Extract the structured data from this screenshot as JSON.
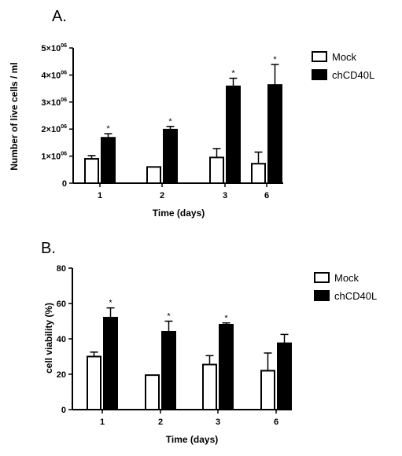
{
  "panels": [
    {
      "label": "A."
    },
    {
      "label": "B."
    }
  ],
  "chart_data": [
    {
      "type": "bar",
      "title": "",
      "xlabel": "Time (days)",
      "ylabel": "Number of live cells / ml",
      "categories": [
        "1",
        "2",
        "3",
        "6"
      ],
      "ylim": [
        0,
        5000000
      ],
      "yticks": [
        {
          "value": 0,
          "label": "0",
          "sup": ""
        },
        {
          "value": 1000000,
          "label": "1×10",
          "sup": "06"
        },
        {
          "value": 2000000,
          "label": "2×10",
          "sup": "06"
        },
        {
          "value": 3000000,
          "label": "3×10",
          "sup": "06"
        },
        {
          "value": 4000000,
          "label": "4×10",
          "sup": "06"
        },
        {
          "value": 5000000,
          "label": "5×10",
          "sup": "06"
        }
      ],
      "series": [
        {
          "name": "Mock",
          "color": "#ffffff",
          "values": [
            900000,
            600000,
            950000,
            720000
          ],
          "errors": [
            120000,
            0,
            330000,
            430000
          ]
        },
        {
          "name": "chCD40L",
          "color": "#000000",
          "values": [
            1680000,
            1980000,
            3580000,
            3630000
          ],
          "errors": [
            150000,
            120000,
            300000,
            760000
          ]
        }
      ],
      "significance": [
        "*",
        "*",
        "*",
        "*"
      ],
      "legend_position": "top-right",
      "grid": false
    },
    {
      "type": "bar",
      "title": "",
      "xlabel": "Time (days)",
      "ylabel": "cell viability (%)",
      "categories": [
        "1",
        "2",
        "3",
        "6"
      ],
      "ylim": [
        0,
        80
      ],
      "yticks": [
        {
          "value": 0,
          "label": "0",
          "sup": ""
        },
        {
          "value": 20,
          "label": "20",
          "sup": ""
        },
        {
          "value": 40,
          "label": "40",
          "sup": ""
        },
        {
          "value": 60,
          "label": "60",
          "sup": ""
        },
        {
          "value": 80,
          "label": "80",
          "sup": ""
        }
      ],
      "series": [
        {
          "name": "Mock",
          "color": "#ffffff",
          "values": [
            30,
            19.5,
            25.5,
            22
          ],
          "errors": [
            2.5,
            0,
            5,
            10
          ]
        },
        {
          "name": "chCD40L",
          "color": "#000000",
          "values": [
            52,
            44,
            48,
            37.5
          ],
          "errors": [
            5.5,
            6,
            1,
            5
          ]
        }
      ],
      "significance": [
        "*",
        "*",
        "*",
        ""
      ],
      "legend_position": "top-right",
      "grid": false
    }
  ]
}
